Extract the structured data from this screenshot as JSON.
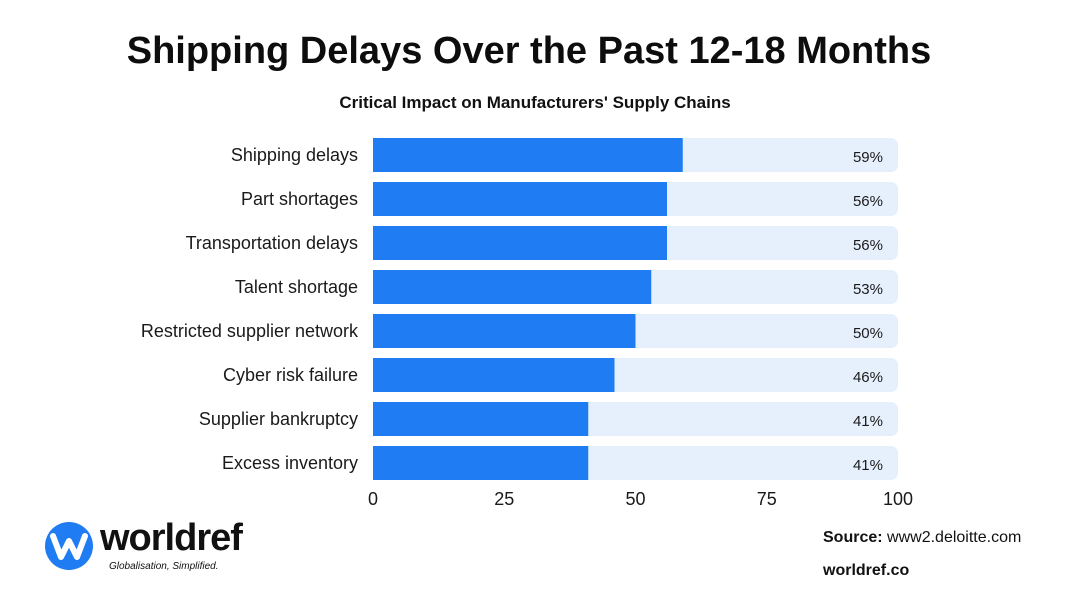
{
  "colors": {
    "bar": "#1f7cf2",
    "track": "#e6f0fc",
    "logo_blue": "#1f7cf2"
  },
  "chart_data": {
    "type": "bar",
    "orientation": "horizontal",
    "title": "Shipping Delays Over the Past 12-18 Months",
    "subtitle": "Critical Impact on Manufacturers' Supply Chains",
    "categories": [
      "Shipping delays",
      "Part shortages",
      "Transportation delays",
      "Talent shortage",
      "Restricted supplier network",
      "Cyber risk failure",
      "Supplier bankruptcy",
      "Excess inventory"
    ],
    "values": [
      59,
      56,
      56,
      53,
      50,
      46,
      41,
      41
    ],
    "value_labels": [
      "59%",
      "56%",
      "56%",
      "53%",
      "50%",
      "46%",
      "41%",
      "41%"
    ],
    "xlim": [
      0,
      100
    ],
    "xticks": [
      0,
      25,
      50,
      75,
      100
    ],
    "xtick_labels": [
      "0",
      "25",
      "50",
      "75",
      "100"
    ],
    "grid": false
  },
  "branding": {
    "logo_icon": "worldref-w-icon",
    "logo_text": "worldref",
    "logo_tagline": "Globalisation, Simplified."
  },
  "footer": {
    "source_label": "Source:",
    "source_value": "www2.deloitte.com",
    "website": "worldref.co"
  }
}
